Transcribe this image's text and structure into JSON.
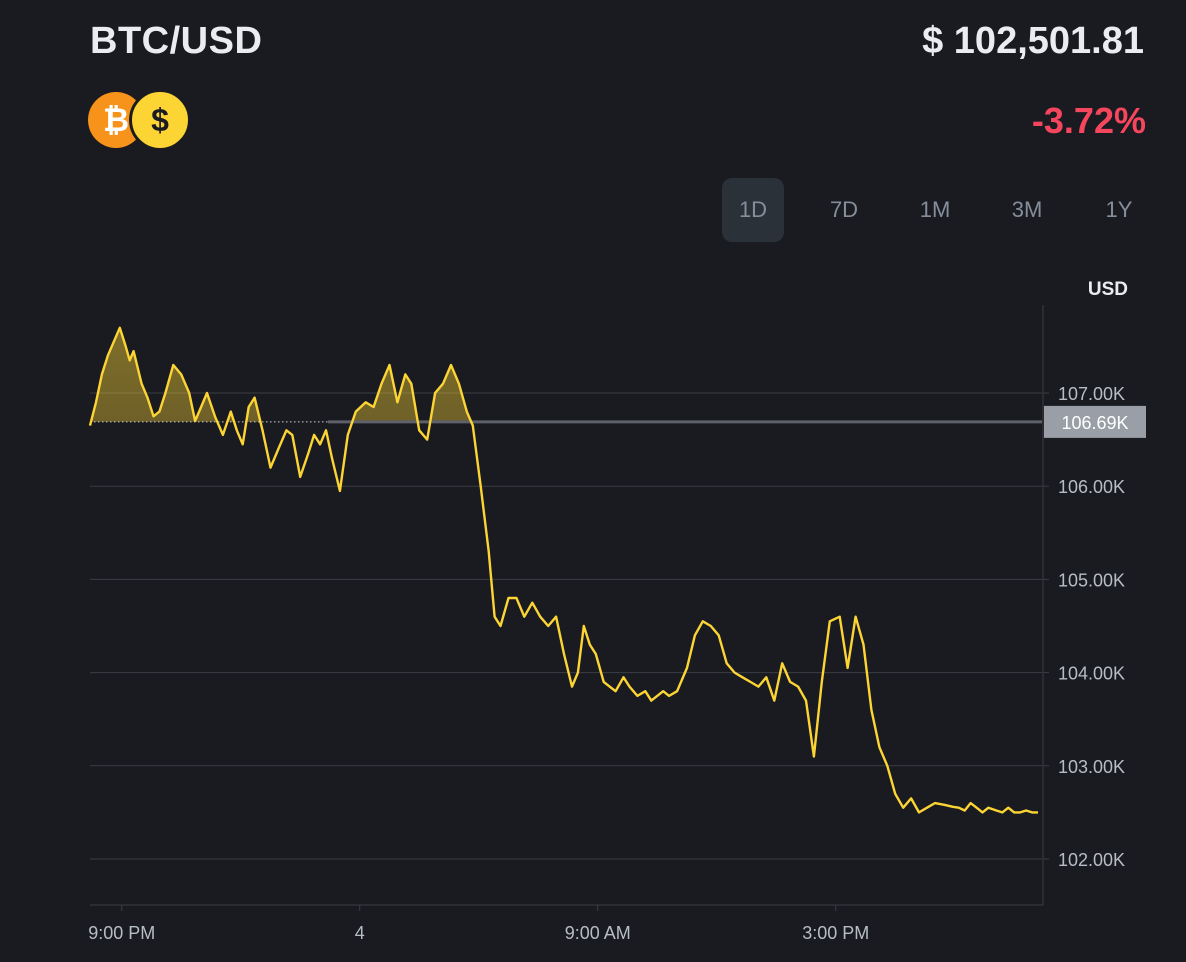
{
  "header": {
    "pair": "BTC/USD",
    "price": "$ 102,501.81",
    "change": "-3.72%",
    "change_color": "#f6465d",
    "icons": [
      "bitcoin-icon",
      "dollar-icon"
    ],
    "icon_glyphs": {
      "btc": "₿",
      "usd": "$"
    }
  },
  "range_tabs": {
    "options": [
      "1D",
      "7D",
      "1M",
      "3M",
      "1Y"
    ],
    "selected": "1D"
  },
  "colors": {
    "line": "#fcd535",
    "background": "#1a1b20",
    "grid": "#3a3d45",
    "axis_text": "#b7bdc6",
    "price_tag_bg": "#9a9ea6"
  },
  "chart_data": {
    "type": "line",
    "currency_label": "USD",
    "reference_line": {
      "value": 106.69,
      "label": "106.69K"
    },
    "y_ticks": [
      {
        "value": 107,
        "label": "107.00K"
      },
      {
        "value": 106,
        "label": "106.00K"
      },
      {
        "value": 105,
        "label": "105.00K"
      },
      {
        "value": 104,
        "label": "104.00K"
      },
      {
        "value": 103,
        "label": "103.00K"
      },
      {
        "value": 102,
        "label": "102.00K"
      }
    ],
    "ylim": [
      101.5,
      107.9
    ],
    "x_ticks": [
      {
        "hour": 0.8,
        "label": "9:00 PM"
      },
      {
        "hour": 6.8,
        "label": "4"
      },
      {
        "hour": 12.8,
        "label": "9:00 AM"
      },
      {
        "hour": 18.8,
        "label": "3:00 PM"
      }
    ],
    "xlim": [
      0,
      24
    ],
    "grid": true,
    "series": [
      {
        "x": [
          0,
          0.15,
          0.3,
          0.45,
          0.6,
          0.75,
          0.9,
          1.0,
          1.1,
          1.3,
          1.45,
          1.6,
          1.75,
          1.9,
          2.1,
          2.3,
          2.5,
          2.65,
          2.8,
          2.95,
          3.15,
          3.35,
          3.55,
          3.7,
          3.85,
          4.0,
          4.15,
          4.35,
          4.55,
          4.75,
          4.95,
          5.1,
          5.3,
          5.5,
          5.65,
          5.8,
          5.95,
          6.1,
          6.3,
          6.5,
          6.7,
          6.95,
          7.15,
          7.35,
          7.55,
          7.75,
          7.95,
          8.1,
          8.3,
          8.5,
          8.7,
          8.9,
          9.1,
          9.3,
          9.5,
          9.65,
          9.85,
          10.05,
          10.2,
          10.35,
          10.55,
          10.75,
          10.95,
          11.15,
          11.35,
          11.55,
          11.75,
          11.95,
          12.15,
          12.3,
          12.45,
          12.6,
          12.75,
          12.95,
          13.1,
          13.25,
          13.45,
          13.6,
          13.8,
          14.0,
          14.15,
          14.3,
          14.45,
          14.6,
          14.8,
          15.05,
          15.25,
          15.45,
          15.65,
          15.85,
          16.05,
          16.25,
          16.45,
          16.65,
          16.85,
          17.05,
          17.25,
          17.45,
          17.65,
          17.85,
          18.05,
          18.25,
          18.45,
          18.65,
          18.9,
          19.1,
          19.3,
          19.5,
          19.7,
          19.9,
          20.1,
          20.3,
          20.5,
          20.7,
          20.9,
          21.1,
          21.3,
          21.55,
          21.75,
          21.9,
          22.05,
          22.2,
          22.35,
          22.5,
          22.65,
          22.85,
          23.0,
          23.15,
          23.3,
          23.45,
          23.6,
          23.75,
          23.9
        ],
        "y": [
          106.65,
          106.9,
          107.2,
          107.4,
          107.55,
          107.7,
          107.5,
          107.35,
          107.45,
          107.1,
          106.95,
          106.75,
          106.8,
          107.0,
          107.3,
          107.2,
          107.0,
          106.7,
          106.85,
          107.0,
          106.75,
          106.55,
          106.8,
          106.6,
          106.45,
          106.85,
          106.95,
          106.6,
          106.2,
          106.4,
          106.6,
          106.55,
          106.1,
          106.35,
          106.55,
          106.45,
          106.6,
          106.3,
          105.95,
          106.55,
          106.8,
          106.9,
          106.85,
          107.1,
          107.3,
          106.9,
          107.2,
          107.1,
          106.6,
          106.5,
          107.0,
          107.1,
          107.3,
          107.1,
          106.8,
          106.65,
          106.0,
          105.3,
          104.6,
          104.5,
          104.8,
          104.8,
          104.6,
          104.75,
          104.6,
          104.5,
          104.6,
          104.2,
          103.85,
          104.0,
          104.5,
          104.3,
          104.2,
          103.9,
          103.85,
          103.8,
          103.95,
          103.85,
          103.75,
          103.8,
          103.7,
          103.75,
          103.8,
          103.75,
          103.8,
          104.05,
          104.4,
          104.55,
          104.5,
          104.4,
          104.1,
          104.0,
          103.95,
          103.9,
          103.85,
          103.95,
          103.7,
          104.1,
          103.9,
          103.85,
          103.7,
          103.1,
          103.9,
          104.55,
          104.6,
          104.05,
          104.6,
          104.3,
          103.6,
          103.2,
          103.0,
          102.7,
          102.55,
          102.65,
          102.5,
          102.55,
          102.6,
          102.58,
          102.56,
          102.55,
          102.52,
          102.6,
          102.55,
          102.5,
          102.55,
          102.52,
          102.5,
          102.55,
          102.5,
          102.5,
          102.52,
          102.5,
          102.5
        ]
      }
    ]
  }
}
